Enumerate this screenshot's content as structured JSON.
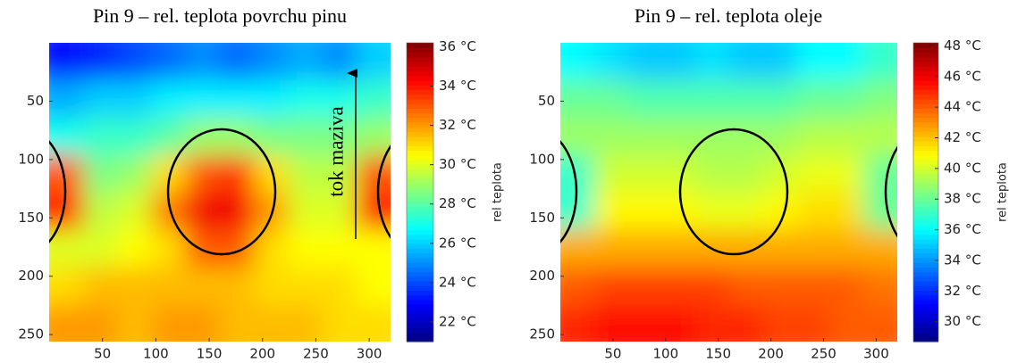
{
  "chart_data": [
    {
      "type": "heatmap",
      "title": "Pin 9 – rel. teplota povrchu pinu",
      "colormap": "jet",
      "xlim": [
        0,
        320
      ],
      "ylim": [
        0,
        256
      ],
      "y_reversed": true,
      "xticks": [
        50,
        100,
        150,
        200,
        250,
        300
      ],
      "yticks": [
        50,
        100,
        150,
        200,
        250
      ],
      "clim": [
        21,
        36.2
      ],
      "cticks": [
        {
          "value": 22,
          "label": "22 °C"
        },
        {
          "value": 24,
          "label": "24 °C"
        },
        {
          "value": 26,
          "label": "26 °C"
        },
        {
          "value": 28,
          "label": "28 °C"
        },
        {
          "value": 30,
          "label": "30 °C"
        },
        {
          "value": 32,
          "label": "32 °C"
        },
        {
          "value": 34,
          "label": "34 °C"
        },
        {
          "value": 36,
          "label": "36 °C"
        }
      ],
      "colorbar_label": "rel teplota",
      "annotation": "tok maziva",
      "z": [
        [
          23,
          23.5,
          24,
          24.5,
          25,
          24.5,
          25,
          25.5,
          25,
          26
        ],
        [
          25.5,
          26,
          26,
          26.5,
          26.5,
          26.5,
          26.5,
          27,
          27,
          27.5
        ],
        [
          27,
          27.5,
          27.5,
          28,
          29,
          29,
          28.5,
          28.5,
          28.5,
          29
        ],
        [
          33,
          28.5,
          29,
          31,
          33,
          33.5,
          31,
          29.5,
          29.5,
          33
        ],
        [
          34,
          29.5,
          30,
          32.5,
          34.5,
          34.5,
          32,
          30,
          30,
          34
        ],
        [
          30,
          30,
          30.5,
          31,
          33,
          33,
          31,
          30.5,
          30.5,
          30.5
        ],
        [
          31,
          31.5,
          31.5,
          31.5,
          31.5,
          31.5,
          31,
          31,
          31,
          30.5
        ],
        [
          32,
          32,
          31.5,
          32,
          32,
          31.5,
          31.5,
          31.5,
          31,
          31
        ]
      ]
    },
    {
      "type": "heatmap",
      "title": "Pin 9 – rel. teplota oleje",
      "colormap": "jet",
      "xlim": [
        0,
        320
      ],
      "ylim": [
        0,
        256
      ],
      "y_reversed": true,
      "xticks": [
        50,
        100,
        150,
        200,
        250,
        300
      ],
      "yticks": [
        50,
        100,
        150,
        200,
        250
      ],
      "clim": [
        28.7,
        48.2
      ],
      "cticks": [
        {
          "value": 30,
          "label": "30 °C"
        },
        {
          "value": 32,
          "label": "32 °C"
        },
        {
          "value": 34,
          "label": "34 °C"
        },
        {
          "value": 36,
          "label": "36 °C"
        },
        {
          "value": 38,
          "label": "38 °C"
        },
        {
          "value": 40,
          "label": "40 °C"
        },
        {
          "value": 42,
          "label": "42 °C"
        },
        {
          "value": 44,
          "label": "44 °C"
        },
        {
          "value": 46,
          "label": "46 °C"
        },
        {
          "value": 48,
          "label": "48 °C"
        }
      ],
      "colorbar_label": "rel teplota",
      "z": [
        [
          36,
          35.5,
          35,
          35,
          35.5,
          35,
          35,
          36,
          36,
          37
        ],
        [
          38,
          38,
          37.5,
          37.5,
          37.5,
          37.5,
          37.5,
          38,
          38,
          38.5
        ],
        [
          39,
          39,
          39,
          39,
          39,
          39,
          39,
          39.5,
          39.5,
          39.5
        ],
        [
          37,
          40,
          40,
          40,
          39.5,
          39.5,
          40,
          40.5,
          40.5,
          38
        ],
        [
          37,
          41,
          41,
          41,
          40.5,
          40.5,
          41,
          41.5,
          41.5,
          38
        ],
        [
          42.5,
          42.5,
          42.5,
          42.5,
          42.5,
          42.5,
          42.5,
          42.5,
          42.5,
          42.5
        ],
        [
          44,
          44.5,
          44.5,
          44.5,
          44.5,
          44,
          44,
          44,
          44,
          43.5
        ],
        [
          45,
          45.5,
          45.5,
          45.5,
          45,
          45,
          44.5,
          44.5,
          44,
          44
        ]
      ]
    }
  ]
}
